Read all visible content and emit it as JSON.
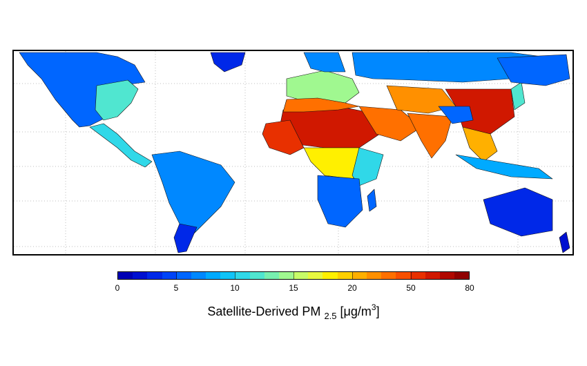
{
  "colorbar": {
    "ticks": [
      "0",
      "5",
      "10",
      "15",
      "20",
      "50",
      "80"
    ],
    "label_main": "Satellite-Derived PM",
    "label_sub": "2.5",
    "label_unit_open": "[μg/m",
    "label_unit_sup": "3",
    "label_unit_close": "]",
    "colors": [
      "#0000b4",
      "#0010d0",
      "#0028e8",
      "#0044f8",
      "#0066ff",
      "#0088ff",
      "#00aaff",
      "#10c4f8",
      "#30d8e8",
      "#50e6d0",
      "#78f0b0",
      "#a0f890",
      "#c8fc68",
      "#e8f840",
      "#fff000",
      "#ffd000",
      "#ffb000",
      "#ff9000",
      "#ff7000",
      "#f85000",
      "#e83000",
      "#d01800",
      "#b00800",
      "#900000"
    ]
  },
  "map": {
    "graticule": "dotted",
    "regions": [
      {
        "name": "North America",
        "value": 6
      },
      {
        "name": "Eastern US",
        "value": 12
      },
      {
        "name": "Greenland",
        "value": 3
      },
      {
        "name": "Central America",
        "value": 10
      },
      {
        "name": "South America",
        "value": 7
      },
      {
        "name": "Southern Cone",
        "value": 3
      },
      {
        "name": "Europe",
        "value": 14
      },
      {
        "name": "Northern Europe",
        "value": 7
      },
      {
        "name": "Russia",
        "value": 7
      },
      {
        "name": "Sahara",
        "value": 60
      },
      {
        "name": "North Africa",
        "value": 38
      },
      {
        "name": "West Africa",
        "value": 55
      },
      {
        "name": "Central Africa",
        "value": 18
      },
      {
        "name": "East Africa",
        "value": 11
      },
      {
        "name": "Southern Africa",
        "value": 5
      },
      {
        "name": "Madagascar",
        "value": 5
      },
      {
        "name": "Middle East",
        "value": 40
      },
      {
        "name": "Central Asia",
        "value": 28
      },
      {
        "name": "India",
        "value": 40
      },
      {
        "name": "China",
        "value": 62
      },
      {
        "name": "Tibet",
        "value": 6
      },
      {
        "name": "Southeast Asia",
        "value": 20
      },
      {
        "name": "Indonesia",
        "value": 8
      },
      {
        "name": "Japan",
        "value": 12
      },
      {
        "name": "Siberia",
        "value": 5
      },
      {
        "name": "Australia",
        "value": 3
      },
      {
        "name": "New Zealand",
        "value": 2
      }
    ]
  }
}
